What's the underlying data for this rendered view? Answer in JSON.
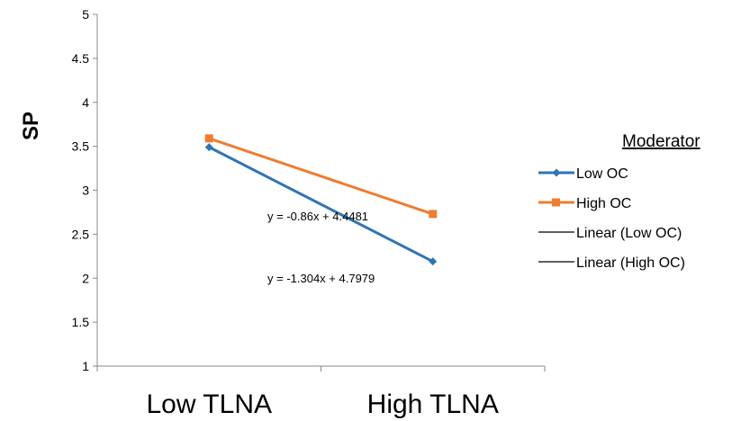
{
  "chart_data": {
    "type": "line",
    "categories": [
      "Low TLNA",
      "High TLNA"
    ],
    "ylabel": "SP",
    "xlabel": "",
    "ylim": [
      1,
      5
    ],
    "yticks": [
      "1",
      "1.5",
      "2",
      "2.5",
      "3",
      "3.5",
      "4",
      "4.5",
      "5"
    ],
    "grid": false,
    "legend_position": "right",
    "legend_title": "Moderator",
    "series": [
      {
        "name": "Low OC",
        "values": [
          3.49,
          2.19
        ],
        "color": "#2e75b6",
        "marker": "diamond"
      },
      {
        "name": "High OC",
        "values": [
          3.59,
          2.73
        ],
        "color": "#ed7d31",
        "marker": "square"
      }
    ],
    "trendlines": [
      {
        "name": "Linear (Low OC)",
        "slope": -1.304,
        "intercept": 4.7979,
        "color": "#000000",
        "equation": "y = -1.304x + 4.7979"
      },
      {
        "name": "Linear (High OC)",
        "slope": -0.86,
        "intercept": 4.4481,
        "color": "#000000",
        "equation": "y = -0.86x + 4.4481"
      }
    ]
  }
}
